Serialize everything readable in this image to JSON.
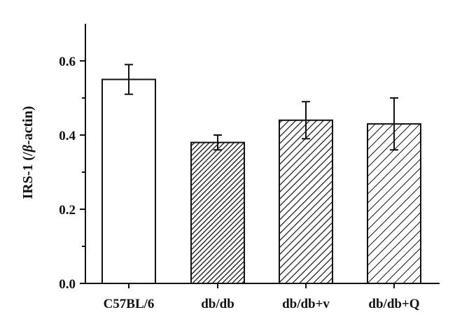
{
  "chart_data": {
    "type": "bar",
    "title": "",
    "xlabel": "",
    "ylabel": "IRS-1 (/",
    "ylabel_greek": "β",
    "ylabel_suffix": "-actin)",
    "categories": [
      "C57BL/6",
      "db/db",
      "db/db+v",
      "db/db+Q"
    ],
    "values": [
      0.55,
      0.38,
      0.44,
      0.43
    ],
    "errors": [
      0.04,
      0.02,
      0.05,
      0.07
    ],
    "bar_fills": [
      "none",
      "dense-hatch",
      "hatch",
      "light-hatch"
    ],
    "ylim": [
      0,
      0.7
    ],
    "yticks": [
      0.0,
      0.2,
      0.4,
      0.6
    ],
    "ytick_labels": [
      "0.0",
      "0.2",
      "0.4",
      "0.6"
    ],
    "grid": false,
    "legend": "none",
    "colors": {
      "axis": "#111111",
      "bar_edge": "#111111",
      "background": "#ffffff"
    }
  }
}
